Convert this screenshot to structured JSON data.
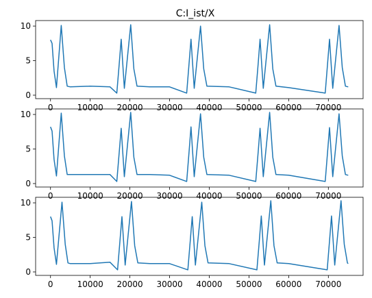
{
  "chart_data": [
    {
      "type": "line",
      "title": "C:I_ist/X",
      "xlabel": "",
      "ylabel": "",
      "xlim": [
        -3750,
        78750
      ],
      "ylim": [
        -0.5,
        10.8
      ],
      "xticks": [
        0,
        10000,
        20000,
        30000,
        40000,
        50000,
        60000,
        70000
      ],
      "yticks": [
        0,
        5,
        10
      ],
      "grid": false,
      "series": [
        {
          "color": "#1f77b4",
          "x": [
            0,
            400,
            900,
            1500,
            2700,
            3500,
            4200,
            5000,
            10000,
            15000,
            16700,
            17300,
            17800,
            18600,
            20200,
            21000,
            21800,
            25000,
            30000,
            34300,
            34900,
            35400,
            36200,
            37800,
            38600,
            39400,
            45000,
            51700,
            52300,
            52800,
            53600,
            55200,
            56000,
            56800,
            60000,
            69200,
            69800,
            70300,
            71100,
            72700,
            73500,
            74300,
            75000
          ],
          "y": [
            8.0,
            7.5,
            3.5,
            1.1,
            10.1,
            4.0,
            1.3,
            1.2,
            1.3,
            1.2,
            0.3,
            4.5,
            8.1,
            1.0,
            10.2,
            3.8,
            1.3,
            1.2,
            1.2,
            0.3,
            4.5,
            8.1,
            1.0,
            10.0,
            3.8,
            1.3,
            1.2,
            0.3,
            4.5,
            8.1,
            1.0,
            10.2,
            3.8,
            1.3,
            1.1,
            0.3,
            4.5,
            8.1,
            1.0,
            10.1,
            4.0,
            1.3,
            1.2
          ]
        }
      ]
    },
    {
      "type": "line",
      "title": "",
      "xlabel": "",
      "ylabel": "",
      "xlim": [
        -3750,
        78750
      ],
      "ylim": [
        -0.5,
        10.8
      ],
      "xticks": [
        0,
        10000,
        20000,
        30000,
        40000,
        50000,
        60000,
        70000
      ],
      "yticks": [
        0,
        5,
        10
      ],
      "grid": false,
      "series": [
        {
          "color": "#1f77b4",
          "x": [
            0,
            400,
            900,
            1500,
            2700,
            3500,
            4200,
            5000,
            10000,
            15000,
            16700,
            17300,
            17800,
            18600,
            20200,
            21000,
            21800,
            25000,
            30000,
            34300,
            34900,
            35400,
            36200,
            37800,
            38600,
            39400,
            45000,
            51700,
            52300,
            52800,
            53600,
            55200,
            56000,
            56800,
            60000,
            69200,
            69800,
            70300,
            71100,
            72700,
            73500,
            74300,
            75000
          ],
          "y": [
            8.2,
            7.6,
            3.5,
            1.1,
            10.2,
            4.0,
            1.3,
            1.3,
            1.3,
            1.3,
            0.3,
            4.5,
            8.0,
            1.0,
            10.3,
            3.8,
            1.3,
            1.3,
            1.2,
            0.3,
            4.5,
            8.2,
            1.0,
            10.1,
            3.8,
            1.3,
            1.2,
            0.3,
            4.5,
            8.0,
            1.0,
            10.3,
            3.8,
            1.3,
            1.2,
            0.3,
            4.5,
            8.1,
            1.0,
            10.1,
            4.0,
            1.3,
            1.2
          ]
        }
      ]
    },
    {
      "type": "line",
      "title": "",
      "xlabel": "",
      "ylabel": "",
      "xlim": [
        -3750,
        78750
      ],
      "ylim": [
        -0.5,
        10.8
      ],
      "xticks": [
        0,
        10000,
        20000,
        30000,
        40000,
        50000,
        60000,
        70000
      ],
      "yticks": [
        0,
        5,
        10
      ],
      "grid": false,
      "series": [
        {
          "color": "#1f77b4",
          "x": [
            0,
            400,
            900,
            1500,
            2900,
            3700,
            4400,
            5000,
            10000,
            15000,
            16900,
            17500,
            18000,
            18800,
            20400,
            21200,
            22000,
            25000,
            30000,
            34600,
            35200,
            35700,
            36500,
            38100,
            38900,
            39700,
            45000,
            52000,
            52600,
            53100,
            53900,
            55500,
            56300,
            57100,
            60000,
            69700,
            70300,
            70800,
            71600,
            73200,
            74000,
            74800,
            75000
          ],
          "y": [
            8.0,
            7.4,
            3.5,
            1.1,
            10.1,
            4.0,
            1.3,
            1.2,
            1.2,
            1.4,
            0.3,
            4.5,
            8.0,
            1.0,
            10.2,
            3.8,
            1.3,
            1.2,
            1.2,
            0.3,
            4.5,
            8.0,
            1.0,
            10.1,
            3.8,
            1.3,
            1.2,
            0.3,
            4.5,
            8.1,
            1.0,
            10.3,
            3.8,
            1.3,
            1.2,
            0.3,
            4.5,
            8.1,
            1.0,
            10.3,
            4.0,
            1.3,
            1.2
          ]
        }
      ]
    }
  ]
}
